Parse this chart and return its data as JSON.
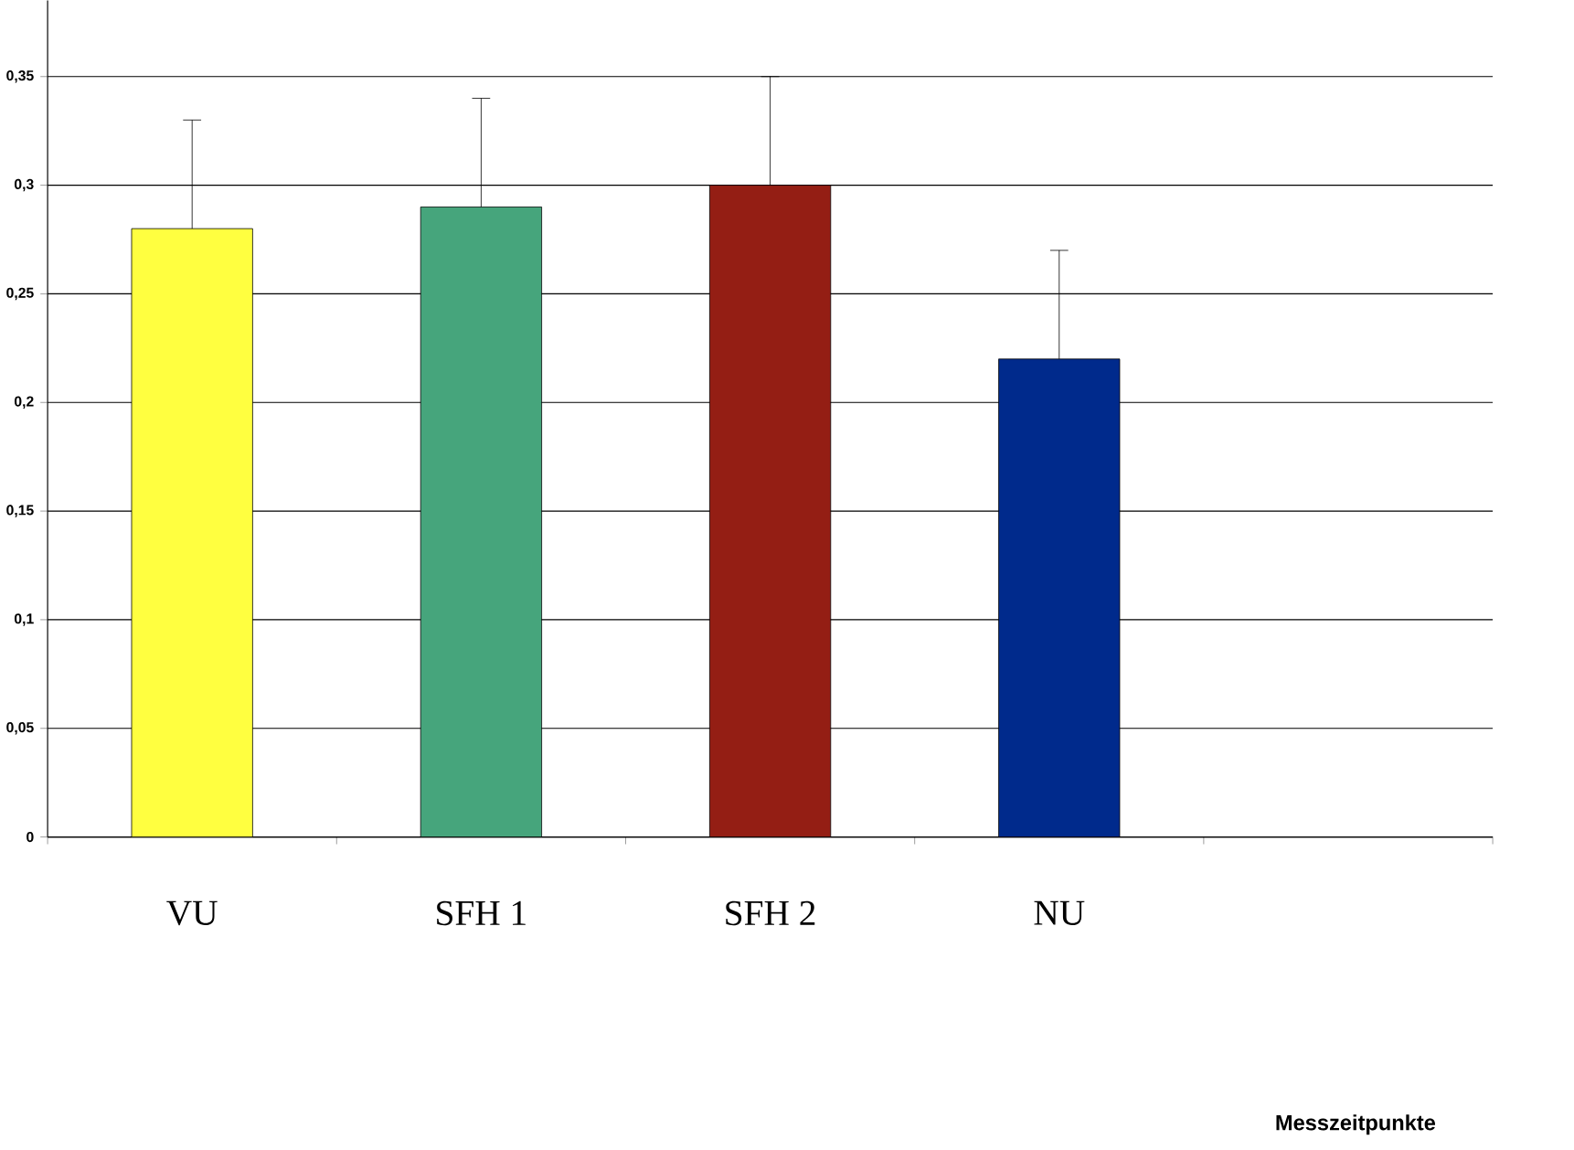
{
  "chart_data": {
    "type": "bar",
    "annotations": [
      "Messzeitpunkte"
    ],
    "categories": [
      "VU",
      "SFH 1",
      "SFH 2",
      "NU",
      null
    ],
    "values": [
      0.28,
      0.29,
      0.3,
      0.22,
      null
    ],
    "errors": [
      [
        0.28,
        0.33
      ],
      [
        0.29,
        0.34
      ],
      [
        0.3,
        0.35
      ],
      [
        0.22,
        0.27
      ],
      null
    ],
    "colors": [
      "#ffff40",
      "#46a57c",
      "#941e14",
      "#002a8c",
      "#ffffff"
    ],
    "ylim": [
      0,
      0.385
    ],
    "yticks": [
      0,
      {
        "value": 0.05,
        "label": "0,05"
      },
      {
        "value": 0.1,
        "label": "0,1"
      },
      {
        "value": 0.15,
        "label": "0,15"
      },
      {
        "value": 0.2,
        "label": "0,2"
      },
      {
        "value": 0.25,
        "label": "0,25"
      },
      {
        "value": 0.3,
        "label": "0,3"
      },
      {
        "value": 0.35,
        "label": "0,35"
      }
    ],
    "grid": "y"
  }
}
